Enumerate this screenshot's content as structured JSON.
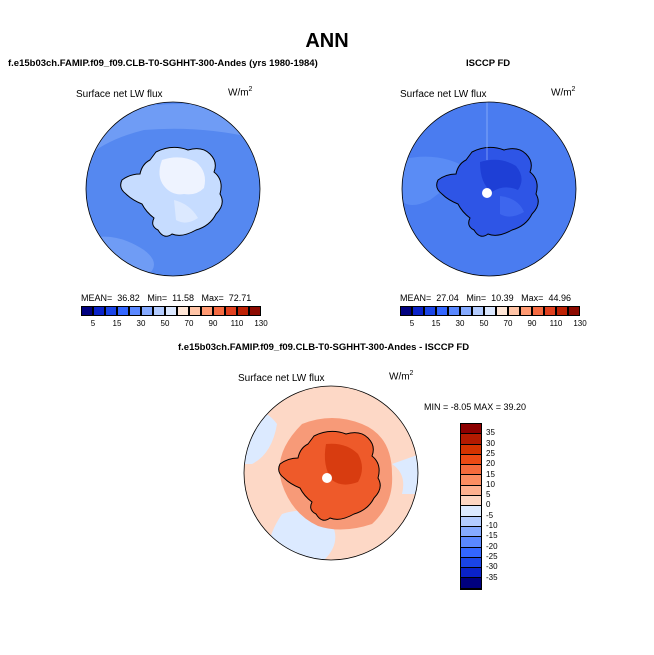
{
  "title": "ANN",
  "panels": {
    "model": {
      "title": "f.e15b03ch.FAMIP.f09_f09.CLB-T0-SGHHT-300-Andes (yrs 1980-1984)",
      "variable": "Surface net LW flux",
      "units_base": "W/m",
      "units_exp": "2",
      "mean_label": "MEAN=",
      "mean": "36.82",
      "min_label": "Min=",
      "min": "11.58",
      "max_label": "Max=",
      "max": "72.71"
    },
    "obs": {
      "title": "ISCCP FD",
      "variable": "Surface net LW flux",
      "units_base": "W/m",
      "units_exp": "2",
      "mean_label": "MEAN=",
      "mean": "27.04",
      "min_label": "Min=",
      "min": "10.39",
      "max_label": "Max=",
      "max": "44.96"
    },
    "diff": {
      "title": "f.e15b03ch.FAMIP.f09_f09.CLB-T0-SGHHT-300-Andes - ISCCP FD",
      "variable": "Surface net LW flux",
      "units_base": "W/m",
      "units_exp": "2",
      "range_text": "MIN =  -8.05 MAX =  39.20"
    }
  },
  "colorbar_abs": {
    "ticks": [
      "5",
      "15",
      "30",
      "50",
      "70",
      "90",
      "110",
      "130"
    ],
    "colors": [
      "#00007f",
      "#0a22c8",
      "#1a44e6",
      "#3366ff",
      "#5a88ff",
      "#85aaff",
      "#b3ccff",
      "#dbe8ff",
      "#ffe6d6",
      "#ffc4a6",
      "#ff9a72",
      "#f56b42",
      "#e0401f",
      "#bd2205",
      "#8c0a00"
    ]
  },
  "colorbar_diff": {
    "ticks": [
      "35",
      "30",
      "25",
      "20",
      "15",
      "10",
      "5",
      "0",
      "-5",
      "-10",
      "-15",
      "-20",
      "-25",
      "-30",
      "-35"
    ],
    "colors": [
      "#8c0000",
      "#b31a00",
      "#d43300",
      "#ec4a14",
      "#f56b3c",
      "#fb8d61",
      "#fdb08f",
      "#fdd6c2",
      "#dceaff",
      "#b3ccff",
      "#85aaff",
      "#5a88ff",
      "#3366ff",
      "#1a44e6",
      "#0a22c8",
      "#00007f"
    ]
  },
  "map_colors": {
    "ocean_model": "#5588f0",
    "ocean_model_light": "#6f9cf5",
    "ice_model": "#c6dcff",
    "ice_model_white": "#eef3ff",
    "ocean_obs": "#4a7cf0",
    "land_obs": "#2e55e6",
    "land_obs_dark": "#1e3fd6",
    "diff_ocean": "#fdd8c6",
    "diff_ocean_blue": "#dceaff",
    "diff_land": "#ee5a2a",
    "diff_land_dark": "#d83c10"
  }
}
